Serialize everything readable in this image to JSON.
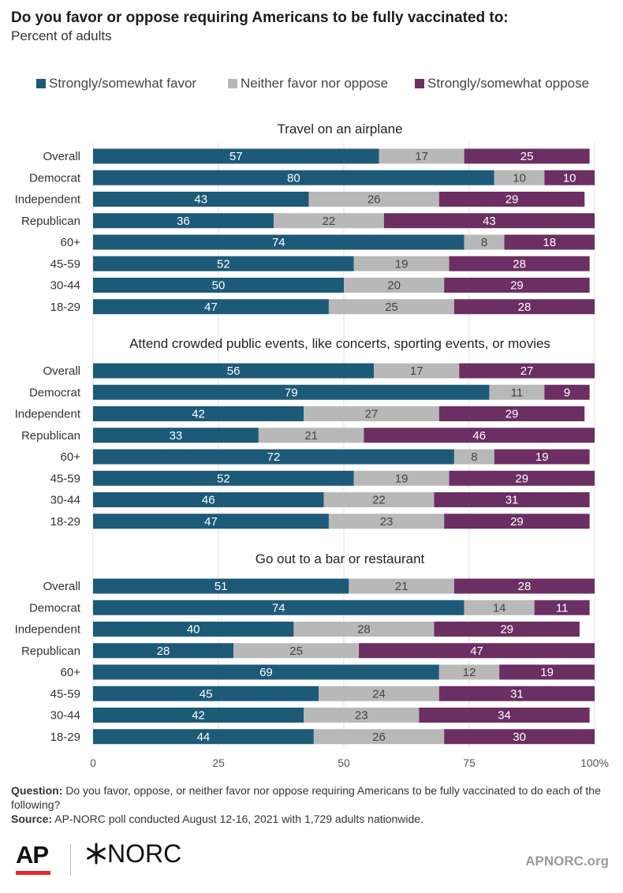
{
  "title": "Do you favor or oppose requiring Americans to be fully vaccinated to:",
  "subtitle": "Percent of adults",
  "legend": [
    {
      "label": "Strongly/somewhat favor",
      "color": "#1c5a78"
    },
    {
      "label": "Neither favor nor oppose",
      "color": "#b8b8b8"
    },
    {
      "label": "Strongly/somewhat oppose",
      "color": "#6b2f63"
    }
  ],
  "chart_data": {
    "type": "bar",
    "orientation": "horizontal",
    "stacked": true,
    "categories": [
      "Overall",
      "Democrat",
      "Independent",
      "Republican",
      "60+",
      "45-59",
      "30-44",
      "18-29"
    ],
    "xlim": [
      0,
      100
    ],
    "xticks": [
      "0",
      "25",
      "50",
      "75",
      "100%"
    ],
    "grid": true,
    "legend_position": "top",
    "panels": [
      {
        "title": "Travel on an airplane",
        "series": [
          {
            "name": "Strongly/somewhat favor",
            "values": [
              57,
              80,
              43,
              36,
              74,
              52,
              50,
              47
            ]
          },
          {
            "name": "Neither favor nor oppose",
            "values": [
              17,
              10,
              26,
              22,
              8,
              19,
              20,
              25
            ]
          },
          {
            "name": "Strongly/somewhat oppose",
            "values": [
              25,
              10,
              29,
              43,
              18,
              28,
              29,
              28
            ]
          }
        ]
      },
      {
        "title": "Attend crowded public events, like concerts, sporting events, or movies",
        "series": [
          {
            "name": "Strongly/somewhat favor",
            "values": [
              56,
              79,
              42,
              33,
              72,
              52,
              46,
              47
            ]
          },
          {
            "name": "Neither favor nor oppose",
            "values": [
              17,
              11,
              27,
              21,
              8,
              19,
              22,
              23
            ]
          },
          {
            "name": "Strongly/somewhat oppose",
            "values": [
              27,
              9,
              29,
              46,
              19,
              29,
              31,
              29
            ]
          }
        ]
      },
      {
        "title": "Go out to a bar or restaurant",
        "series": [
          {
            "name": "Strongly/somewhat favor",
            "values": [
              51,
              74,
              40,
              28,
              69,
              45,
              42,
              44
            ]
          },
          {
            "name": "Neither favor nor oppose",
            "values": [
              21,
              14,
              28,
              25,
              12,
              24,
              23,
              26
            ]
          },
          {
            "name": "Strongly/somewhat oppose",
            "values": [
              28,
              11,
              29,
              47,
              19,
              31,
              34,
              30
            ]
          }
        ]
      }
    ]
  },
  "footer": {
    "question_label": "Question:",
    "question_text": "Do you favor, oppose, or neither favor nor oppose requiring Americans to be fully vaccinated to do each of the following?",
    "source_label": "Source:",
    "source_text": "AP-NORC poll conducted August 12-16, 2021 with 1,729 adults nationwide."
  },
  "logos": {
    "ap": "AP",
    "norc": "NORC",
    "site": "APNORC.org"
  }
}
